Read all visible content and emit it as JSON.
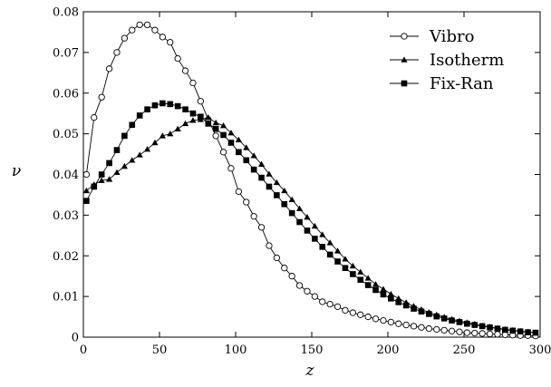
{
  "chart_data": {
    "type": "line",
    "title": "",
    "xlabel": "z",
    "ylabel": "ν",
    "xlim": [
      0,
      300
    ],
    "ylim": [
      0,
      0.08
    ],
    "x_ticks": [
      0,
      50,
      100,
      150,
      200,
      250,
      300
    ],
    "y_ticks": [
      0,
      0.01,
      0.02,
      0.03,
      0.04,
      0.05,
      0.06,
      0.07,
      0.08
    ],
    "x_tick_labels": [
      "0",
      "50",
      "100",
      "150",
      "200",
      "250",
      "300"
    ],
    "y_tick_labels": [
      "0",
      "0.01",
      "0.02",
      "0.03",
      "0.04",
      "0.05",
      "0.06",
      "0.07",
      "0.08"
    ],
    "grid": false,
    "legend_position": "top-right",
    "series": [
      {
        "name": "Vibro",
        "marker": "open-circle",
        "x": [
          2,
          7,
          12,
          17,
          22,
          27,
          32,
          37,
          42,
          47,
          52,
          57,
          62,
          67,
          72,
          77,
          82,
          87,
          92,
          97,
          102,
          107,
          112,
          117,
          122,
          127,
          132,
          137,
          142,
          147,
          152,
          157,
          162,
          167,
          172,
          177,
          182,
          187,
          192,
          197,
          202,
          207,
          212,
          217,
          222,
          227,
          232,
          237,
          242,
          247,
          252,
          257,
          262,
          267,
          272,
          277,
          282,
          287,
          292,
          297
        ],
        "y": [
          0.04,
          0.054,
          0.059,
          0.066,
          0.07,
          0.0735,
          0.0755,
          0.0768,
          0.0768,
          0.0755,
          0.0738,
          0.0725,
          0.0685,
          0.0655,
          0.0625,
          0.058,
          0.0535,
          0.0495,
          0.0455,
          0.0415,
          0.0358,
          0.0332,
          0.0297,
          0.027,
          0.0225,
          0.0195,
          0.017,
          0.015,
          0.0127,
          0.0113,
          0.01,
          0.0087,
          0.0081,
          0.0075,
          0.0066,
          0.006,
          0.0055,
          0.005,
          0.0045,
          0.0041,
          0.0037,
          0.0033,
          0.003,
          0.0027,
          0.0024,
          0.0021,
          0.0019,
          0.0017,
          0.0015,
          0.0013,
          0.0011,
          0.001,
          0.0009,
          0.0008,
          0.0007,
          0.0006,
          0.0005,
          0.0004,
          0.0004,
          0.0003
        ]
      },
      {
        "name": "Isotherm",
        "marker": "filled-triangle",
        "x": [
          2,
          7,
          12,
          17,
          22,
          27,
          32,
          37,
          42,
          47,
          52,
          57,
          62,
          67,
          72,
          77,
          82,
          87,
          92,
          97,
          102,
          107,
          112,
          117,
          122,
          127,
          132,
          137,
          142,
          147,
          152,
          157,
          162,
          167,
          172,
          177,
          182,
          187,
          192,
          197,
          202,
          207,
          212,
          217,
          222,
          227,
          232,
          237,
          242,
          247,
          252,
          257,
          262,
          267,
          272,
          277,
          282,
          287,
          292,
          297
        ],
        "y": [
          0.036,
          0.0375,
          0.0385,
          0.0388,
          0.0405,
          0.042,
          0.0435,
          0.0448,
          0.0462,
          0.0478,
          0.0495,
          0.05,
          0.0512,
          0.0525,
          0.0533,
          0.0535,
          0.054,
          0.0527,
          0.052,
          0.0502,
          0.0485,
          0.0466,
          0.0446,
          0.0425,
          0.0401,
          0.038,
          0.036,
          0.0338,
          0.0316,
          0.0295,
          0.0273,
          0.0252,
          0.0232,
          0.0212,
          0.0192,
          0.0175,
          0.016,
          0.0145,
          0.013,
          0.0118,
          0.0106,
          0.0095,
          0.0085,
          0.0076,
          0.0068,
          0.0061,
          0.0055,
          0.0049,
          0.0044,
          0.004,
          0.0036,
          0.0032,
          0.0028,
          0.0025,
          0.0022,
          0.0019,
          0.0017,
          0.0015,
          0.0013,
          0.0011
        ]
      },
      {
        "name": "Fix-Ran",
        "marker": "filled-square",
        "x": [
          2,
          7,
          12,
          17,
          22,
          27,
          32,
          37,
          42,
          47,
          52,
          57,
          62,
          67,
          72,
          77,
          82,
          87,
          92,
          97,
          102,
          107,
          112,
          117,
          122,
          127,
          132,
          137,
          142,
          147,
          152,
          157,
          162,
          167,
          172,
          177,
          182,
          187,
          192,
          197,
          202,
          207,
          212,
          217,
          222,
          227,
          232,
          237,
          242,
          247,
          252,
          257,
          262,
          267,
          272,
          277,
          282,
          287,
          292,
          297
        ],
        "y": [
          0.0335,
          0.037,
          0.04,
          0.0428,
          0.046,
          0.0495,
          0.0522,
          0.0545,
          0.056,
          0.057,
          0.0575,
          0.0573,
          0.0568,
          0.056,
          0.055,
          0.0542,
          0.0525,
          0.0512,
          0.0497,
          0.0478,
          0.0455,
          0.0435,
          0.0412,
          0.0392,
          0.037,
          0.0349,
          0.0327,
          0.0305,
          0.0283,
          0.0262,
          0.0242,
          0.0222,
          0.0203,
          0.0186,
          0.017,
          0.0155,
          0.0141,
          0.0128,
          0.0116,
          0.0105,
          0.0095,
          0.0086,
          0.0078,
          0.007,
          0.0063,
          0.0057,
          0.0051,
          0.0046,
          0.0041,
          0.0037,
          0.0033,
          0.003,
          0.0027,
          0.0024,
          0.0021,
          0.0018,
          0.0016,
          0.0014,
          0.0012,
          0.0011
        ]
      }
    ]
  }
}
